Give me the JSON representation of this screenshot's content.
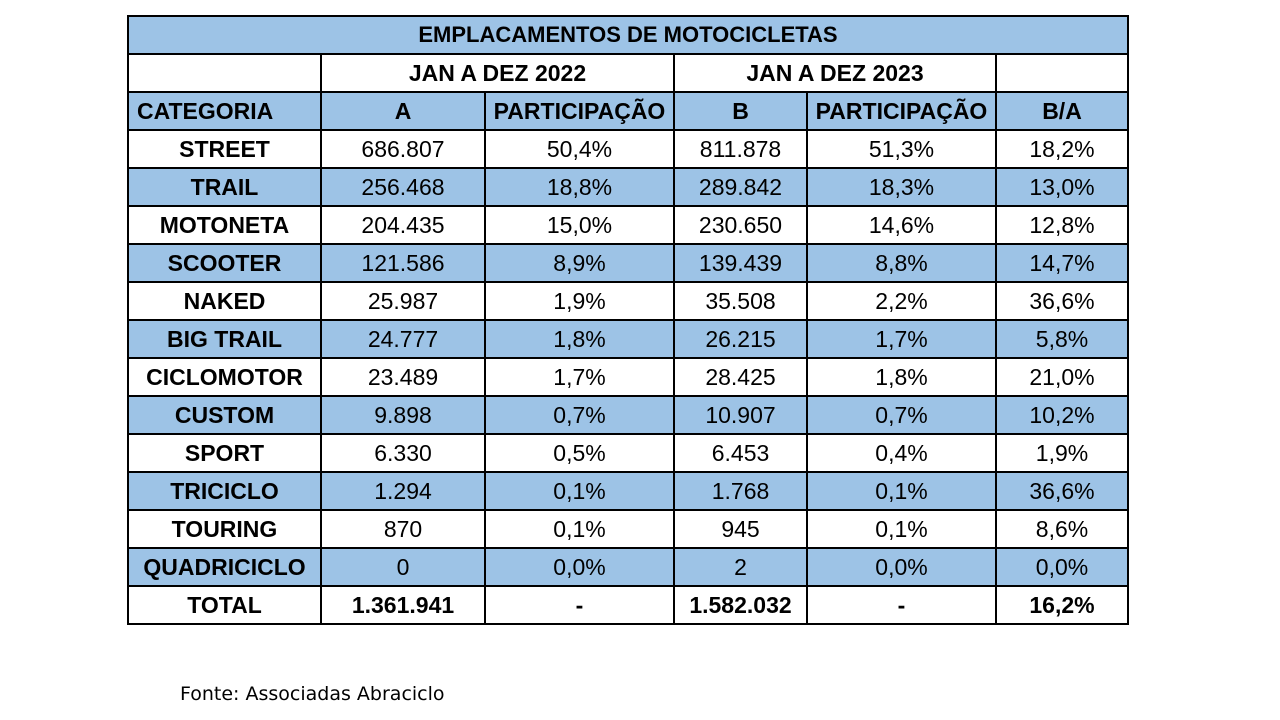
{
  "title": "EMPLACAMENTOS DE MOTOCICLETAS",
  "periods": {
    "p2022": "JAN A DEZ 2022",
    "p2023": "JAN A DEZ 2023"
  },
  "headers": [
    "CATEGORIA",
    "A",
    "PARTICIPAÇÃO",
    "B",
    "PARTICIPAÇÃO",
    "B/A"
  ],
  "rows": [
    {
      "cat": "STREET",
      "a": "686.807",
      "pa": "50,4%",
      "b": "811.878",
      "pb": "51,3%",
      "ba": "18,2%"
    },
    {
      "cat": "TRAIL",
      "a": "256.468",
      "pa": "18,8%",
      "b": "289.842",
      "pb": "18,3%",
      "ba": "13,0%"
    },
    {
      "cat": "MOTONETA",
      "a": "204.435",
      "pa": "15,0%",
      "b": "230.650",
      "pb": "14,6%",
      "ba": "12,8%"
    },
    {
      "cat": "SCOOTER",
      "a": "121.586",
      "pa": "8,9%",
      "b": "139.439",
      "pb": "8,8%",
      "ba": "14,7%"
    },
    {
      "cat": "NAKED",
      "a": "25.987",
      "pa": "1,9%",
      "b": "35.508",
      "pb": "2,2%",
      "ba": "36,6%"
    },
    {
      "cat": "BIG TRAIL",
      "a": "24.777",
      "pa": "1,8%",
      "b": "26.215",
      "pb": "1,7%",
      "ba": "5,8%"
    },
    {
      "cat": "CICLOMOTOR",
      "a": "23.489",
      "pa": "1,7%",
      "b": "28.425",
      "pb": "1,8%",
      "ba": "21,0%"
    },
    {
      "cat": "CUSTOM",
      "a": "9.898",
      "pa": "0,7%",
      "b": "10.907",
      "pb": "0,7%",
      "ba": "10,2%"
    },
    {
      "cat": "SPORT",
      "a": "6.330",
      "pa": "0,5%",
      "b": "6.453",
      "pb": "0,4%",
      "ba": "1,9%"
    },
    {
      "cat": "TRICICLO",
      "a": "1.294",
      "pa": "0,1%",
      "b": "1.768",
      "pb": "0,1%",
      "ba": "36,6%"
    },
    {
      "cat": "TOURING",
      "a": "870",
      "pa": "0,1%",
      "b": "945",
      "pb": "0,1%",
      "ba": "8,6%"
    },
    {
      "cat": "QUADRICICLO",
      "a": "0",
      "pa": "0,0%",
      "b": "2",
      "pb": "0,0%",
      "ba": "0,0%"
    }
  ],
  "total": {
    "cat": "TOTAL",
    "a": "1.361.941",
    "pa": "-",
    "b": "1.582.032",
    "pb": "-",
    "ba": "16,2%"
  },
  "source": "Fonte: Associadas Abraciclo",
  "colors": {
    "band": "#9dc3e6",
    "border": "#000000",
    "background": "#ffffff"
  }
}
